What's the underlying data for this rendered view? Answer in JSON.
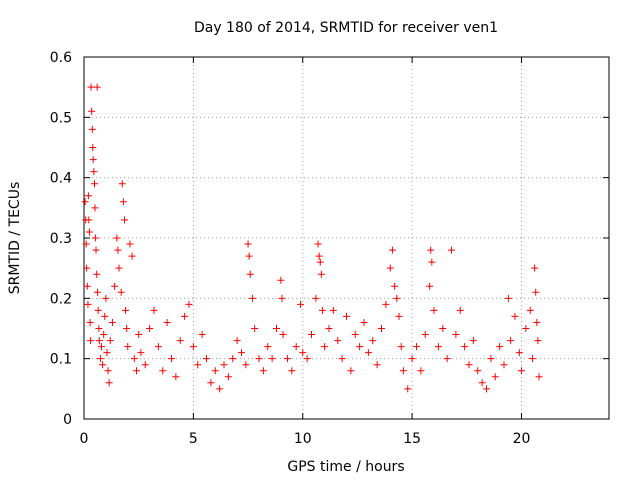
{
  "chart_data": {
    "type": "scatter",
    "title": "Day 180 of 2014, SRMTID for receiver ven1",
    "xlabel": "GPS time / hours",
    "ylabel": "SRMTID / TECUs",
    "xlim": [
      0,
      24
    ],
    "ylim": [
      0,
      0.6
    ],
    "x_ticks": [
      0,
      5,
      10,
      15,
      20
    ],
    "x_tick_labels": [
      "0",
      "5",
      "10",
      "15",
      "20"
    ],
    "y_ticks": [
      0,
      0.1,
      0.2,
      0.3,
      0.4,
      0.5,
      0.6
    ],
    "y_tick_labels": [
      "0",
      "0.1",
      "0.2",
      "0.3",
      "0.4",
      "0.5",
      "0.6"
    ],
    "grid": true,
    "marker": "plus",
    "color": "#ff0000",
    "series": [
      {
        "name": "SRMTID",
        "points": [
          [
            0.05,
            0.36
          ],
          [
            0.08,
            0.33
          ],
          [
            0.1,
            0.29
          ],
          [
            0.12,
            0.25
          ],
          [
            0.15,
            0.22
          ],
          [
            0.18,
            0.19
          ],
          [
            0.2,
            0.37
          ],
          [
            0.22,
            0.33
          ],
          [
            0.25,
            0.31
          ],
          [
            0.28,
            0.16
          ],
          [
            0.3,
            0.13
          ],
          [
            0.32,
            0.55
          ],
          [
            0.35,
            0.51
          ],
          [
            0.38,
            0.48
          ],
          [
            0.4,
            0.45
          ],
          [
            0.42,
            0.43
          ],
          [
            0.45,
            0.41
          ],
          [
            0.48,
            0.39
          ],
          [
            0.5,
            0.35
          ],
          [
            0.52,
            0.3
          ],
          [
            0.55,
            0.28
          ],
          [
            0.58,
            0.24
          ],
          [
            0.6,
            0.55
          ],
          [
            0.62,
            0.21
          ],
          [
            0.65,
            0.18
          ],
          [
            0.68,
            0.15
          ],
          [
            0.7,
            0.13
          ],
          [
            0.75,
            0.1
          ],
          [
            0.8,
            0.12
          ],
          [
            0.85,
            0.09
          ],
          [
            0.9,
            0.14
          ],
          [
            0.95,
            0.17
          ],
          [
            1.0,
            0.2
          ],
          [
            1.05,
            0.11
          ],
          [
            1.1,
            0.08
          ],
          [
            1.15,
            0.06
          ],
          [
            1.2,
            0.13
          ],
          [
            1.3,
            0.16
          ],
          [
            1.4,
            0.22
          ],
          [
            1.5,
            0.3
          ],
          [
            1.55,
            0.28
          ],
          [
            1.6,
            0.25
          ],
          [
            1.7,
            0.21
          ],
          [
            1.75,
            0.39
          ],
          [
            1.8,
            0.36
          ],
          [
            1.85,
            0.33
          ],
          [
            1.9,
            0.18
          ],
          [
            1.95,
            0.15
          ],
          [
            2.0,
            0.12
          ],
          [
            2.1,
            0.29
          ],
          [
            2.2,
            0.27
          ],
          [
            2.3,
            0.1
          ],
          [
            2.4,
            0.08
          ],
          [
            2.5,
            0.14
          ],
          [
            2.6,
            0.11
          ],
          [
            2.8,
            0.09
          ],
          [
            3.0,
            0.15
          ],
          [
            3.2,
            0.18
          ],
          [
            3.4,
            0.12
          ],
          [
            3.6,
            0.08
          ],
          [
            3.8,
            0.16
          ],
          [
            4.0,
            0.1
          ],
          [
            4.2,
            0.07
          ],
          [
            4.4,
            0.13
          ],
          [
            4.6,
            0.17
          ],
          [
            4.8,
            0.19
          ],
          [
            5.0,
            0.12
          ],
          [
            5.2,
            0.09
          ],
          [
            5.4,
            0.14
          ],
          [
            5.6,
            0.1
          ],
          [
            5.8,
            0.06
          ],
          [
            6.0,
            0.08
          ],
          [
            6.2,
            0.05
          ],
          [
            6.4,
            0.09
          ],
          [
            6.6,
            0.07
          ],
          [
            6.8,
            0.1
          ],
          [
            7.0,
            0.13
          ],
          [
            7.2,
            0.11
          ],
          [
            7.4,
            0.09
          ],
          [
            7.5,
            0.29
          ],
          [
            7.55,
            0.27
          ],
          [
            7.6,
            0.24
          ],
          [
            7.7,
            0.2
          ],
          [
            7.8,
            0.15
          ],
          [
            8.0,
            0.1
          ],
          [
            8.2,
            0.08
          ],
          [
            8.4,
            0.12
          ],
          [
            8.6,
            0.1
          ],
          [
            8.8,
            0.15
          ],
          [
            9.0,
            0.23
          ],
          [
            9.05,
            0.2
          ],
          [
            9.1,
            0.14
          ],
          [
            9.3,
            0.1
          ],
          [
            9.5,
            0.08
          ],
          [
            9.7,
            0.12
          ],
          [
            9.9,
            0.19
          ],
          [
            10.0,
            0.11
          ],
          [
            10.2,
            0.1
          ],
          [
            10.4,
            0.14
          ],
          [
            10.6,
            0.2
          ],
          [
            10.7,
            0.29
          ],
          [
            10.75,
            0.27
          ],
          [
            10.8,
            0.26
          ],
          [
            10.85,
            0.24
          ],
          [
            10.9,
            0.18
          ],
          [
            11.0,
            0.12
          ],
          [
            11.2,
            0.15
          ],
          [
            11.4,
            0.18
          ],
          [
            11.6,
            0.13
          ],
          [
            11.8,
            0.1
          ],
          [
            12.0,
            0.17
          ],
          [
            12.2,
            0.08
          ],
          [
            12.4,
            0.14
          ],
          [
            12.6,
            0.12
          ],
          [
            12.8,
            0.16
          ],
          [
            13.0,
            0.11
          ],
          [
            13.2,
            0.13
          ],
          [
            13.4,
            0.09
          ],
          [
            13.6,
            0.15
          ],
          [
            13.8,
            0.19
          ],
          [
            14.0,
            0.25
          ],
          [
            14.1,
            0.28
          ],
          [
            14.2,
            0.22
          ],
          [
            14.3,
            0.2
          ],
          [
            14.4,
            0.17
          ],
          [
            14.5,
            0.12
          ],
          [
            14.6,
            0.08
          ],
          [
            14.8,
            0.05
          ],
          [
            15.0,
            0.1
          ],
          [
            15.2,
            0.12
          ],
          [
            15.4,
            0.08
          ],
          [
            15.6,
            0.14
          ],
          [
            15.8,
            0.22
          ],
          [
            15.85,
            0.28
          ],
          [
            15.9,
            0.26
          ],
          [
            16.0,
            0.18
          ],
          [
            16.2,
            0.12
          ],
          [
            16.4,
            0.15
          ],
          [
            16.6,
            0.1
          ],
          [
            16.8,
            0.28
          ],
          [
            17.0,
            0.14
          ],
          [
            17.2,
            0.18
          ],
          [
            17.4,
            0.12
          ],
          [
            17.6,
            0.09
          ],
          [
            17.8,
            0.13
          ],
          [
            18.0,
            0.08
          ],
          [
            18.2,
            0.06
          ],
          [
            18.4,
            0.05
          ],
          [
            18.6,
            0.1
          ],
          [
            18.8,
            0.07
          ],
          [
            19.0,
            0.12
          ],
          [
            19.2,
            0.09
          ],
          [
            19.4,
            0.2
          ],
          [
            19.5,
            0.13
          ],
          [
            19.7,
            0.17
          ],
          [
            19.9,
            0.11
          ],
          [
            20.0,
            0.08
          ],
          [
            20.2,
            0.15
          ],
          [
            20.4,
            0.18
          ],
          [
            20.5,
            0.1
          ],
          [
            20.6,
            0.25
          ],
          [
            20.65,
            0.21
          ],
          [
            20.7,
            0.16
          ],
          [
            20.75,
            0.13
          ],
          [
            20.8,
            0.07
          ]
        ]
      }
    ]
  }
}
